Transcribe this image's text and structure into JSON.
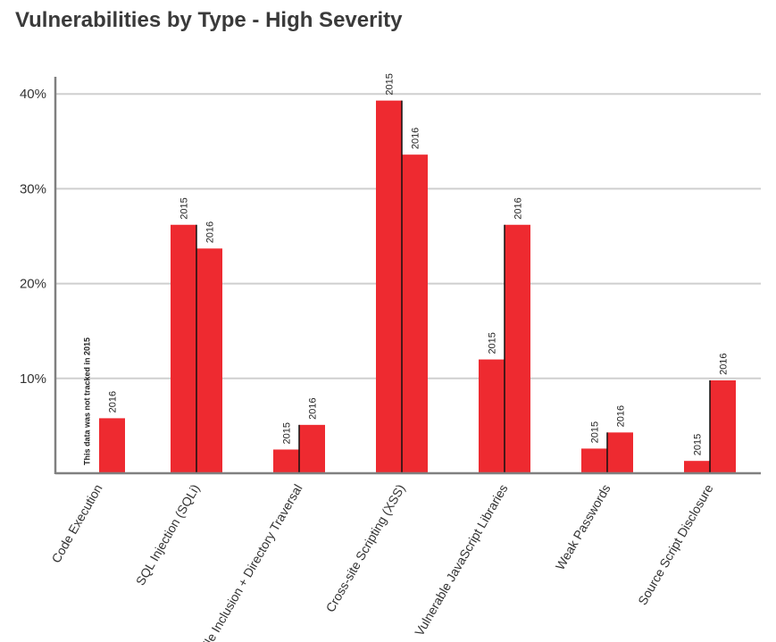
{
  "chart_data": {
    "type": "bar",
    "title": "Vulnerabilities by Type - High Severity",
    "categories": [
      "Code Execution",
      "SQL Injection (SQLi)",
      "File Inclusion + Directory Traversal",
      "Cross-site Scripting (XSS)",
      "Vulnerable JavaScript Libraries",
      "Weak Passwords",
      "Source Script Disclosure"
    ],
    "series": [
      {
        "name": "2015",
        "values": [
          null,
          26.2,
          2.5,
          39.3,
          12.0,
          2.6,
          1.3
        ]
      },
      {
        "name": "2016",
        "values": [
          5.8,
          23.7,
          5.1,
          33.6,
          26.2,
          4.3,
          9.8
        ]
      }
    ],
    "yticks": [
      10,
      20,
      30,
      40
    ],
    "ytick_labels": [
      "10%",
      "20%",
      "30%",
      "40%"
    ],
    "ylim": [
      0,
      42
    ],
    "xlabel": "",
    "ylabel": "",
    "grid": true,
    "legend": "none",
    "bar_color": "#ee2a30",
    "annotations": [
      "This data was not tracked in 2015"
    ]
  }
}
